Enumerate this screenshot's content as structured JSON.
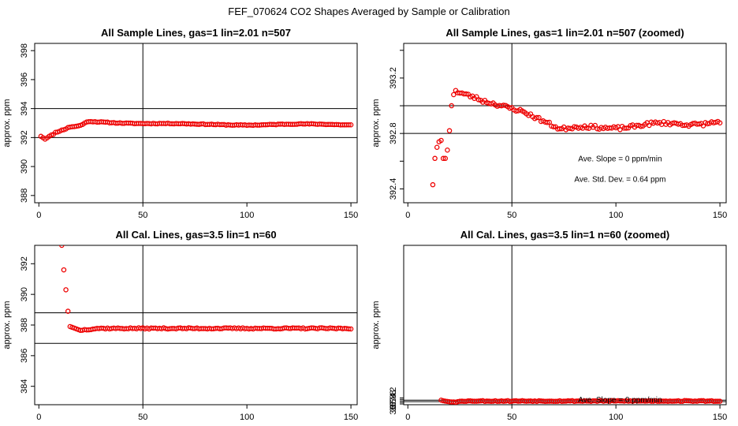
{
  "figure": {
    "title": "FEF_070624  CO2 Shapes Averaged by Sample or Calibration"
  },
  "chart_data": [
    {
      "type": "scatter",
      "title": "All Sample Lines, gas=1 lin=2.01 n=507",
      "ylabel": "approx. ppm",
      "xlim": [
        -2,
        153
      ],
      "ylim": [
        387.5,
        398.5
      ],
      "xticks": [
        0,
        50,
        100,
        150
      ],
      "yticks": [
        388,
        390,
        392,
        394,
        396,
        398
      ],
      "xticks_text": [
        "0",
        "50",
        "100",
        "150"
      ],
      "yticks_text": [
        "388",
        "390",
        "392",
        "394",
        "396",
        "398"
      ],
      "vline": 50,
      "hlines": [
        392,
        394
      ],
      "annotations": [],
      "series": [
        {
          "color": "#ee0000",
          "gen": "s1"
        }
      ]
    },
    {
      "type": "scatter",
      "title": "All Sample Lines, gas=1 lin=2.01 n=507 (zoomed)",
      "ylabel": "approx. ppm",
      "xlim": [
        -2,
        153
      ],
      "ylim": [
        392.3,
        393.45
      ],
      "xticks": [
        0,
        50,
        100,
        150
      ],
      "yticks": [
        392.4,
        392.6,
        392.8,
        393.0,
        393.2,
        393.4
      ],
      "xticks_text": [
        "0",
        "50",
        "100",
        "150"
      ],
      "yticks_text": [
        "392.4",
        "",
        "392.8",
        "",
        "393.2",
        ""
      ],
      "vline": 50,
      "hlines": [
        392.8,
        393.0
      ],
      "annotations": [
        {
          "x": 102,
          "y": 392.6,
          "text": "Ave. Slope =  0  ppm/min"
        },
        {
          "x": 102,
          "y": 392.45,
          "text": "Ave. Std. Dev. =  0.64  ppm"
        }
      ],
      "series": [
        {
          "color": "#ee0000",
          "gen": "s2"
        }
      ]
    },
    {
      "type": "scatter",
      "title": "All Cal. Lines, gas=3.5 lin=1 n=60",
      "ylabel": "approx. ppm",
      "xlim": [
        -2,
        153
      ],
      "ylim": [
        382.8,
        393.2
      ],
      "xticks": [
        0,
        50,
        100,
        150
      ],
      "yticks": [
        384,
        386,
        388,
        390,
        392
      ],
      "xticks_text": [
        "0",
        "50",
        "100",
        "150"
      ],
      "yticks_text": [
        "384",
        "386",
        "388",
        "390",
        "392"
      ],
      "vline": 50,
      "hlines": [
        386.8,
        388.8
      ],
      "annotations": [],
      "series": [
        {
          "color": "#ee0000",
          "gen": "s3"
        }
      ]
    },
    {
      "type": "scatter",
      "title": "All Cal. Lines, gas=3.5 lin=1 n=60 (zoomed)",
      "ylabel": "approx. ppm",
      "xlim": [
        -2,
        153
      ],
      "ylim": [
        367.3,
        388.35
      ],
      "xticks": [
        0,
        50,
        100,
        150
      ],
      "yticks": [
        367.4,
        367.6,
        367.8,
        368.0,
        368.2
      ],
      "xticks_text": [
        "0",
        "50",
        "100",
        "150"
      ],
      "yticks_text": [
        "367.4",
        "",
        "367.8",
        "",
        "368.2"
      ],
      "vline": 50,
      "hlines": [
        367.7,
        367.9
      ],
      "annotations": [
        {
          "x": 102,
          "y": 367.6,
          "text": "Ave. Slope =  0  ppm/min"
        }
      ],
      "series": [
        {
          "color": "#ee0000",
          "gen": "s4"
        }
      ]
    }
  ]
}
